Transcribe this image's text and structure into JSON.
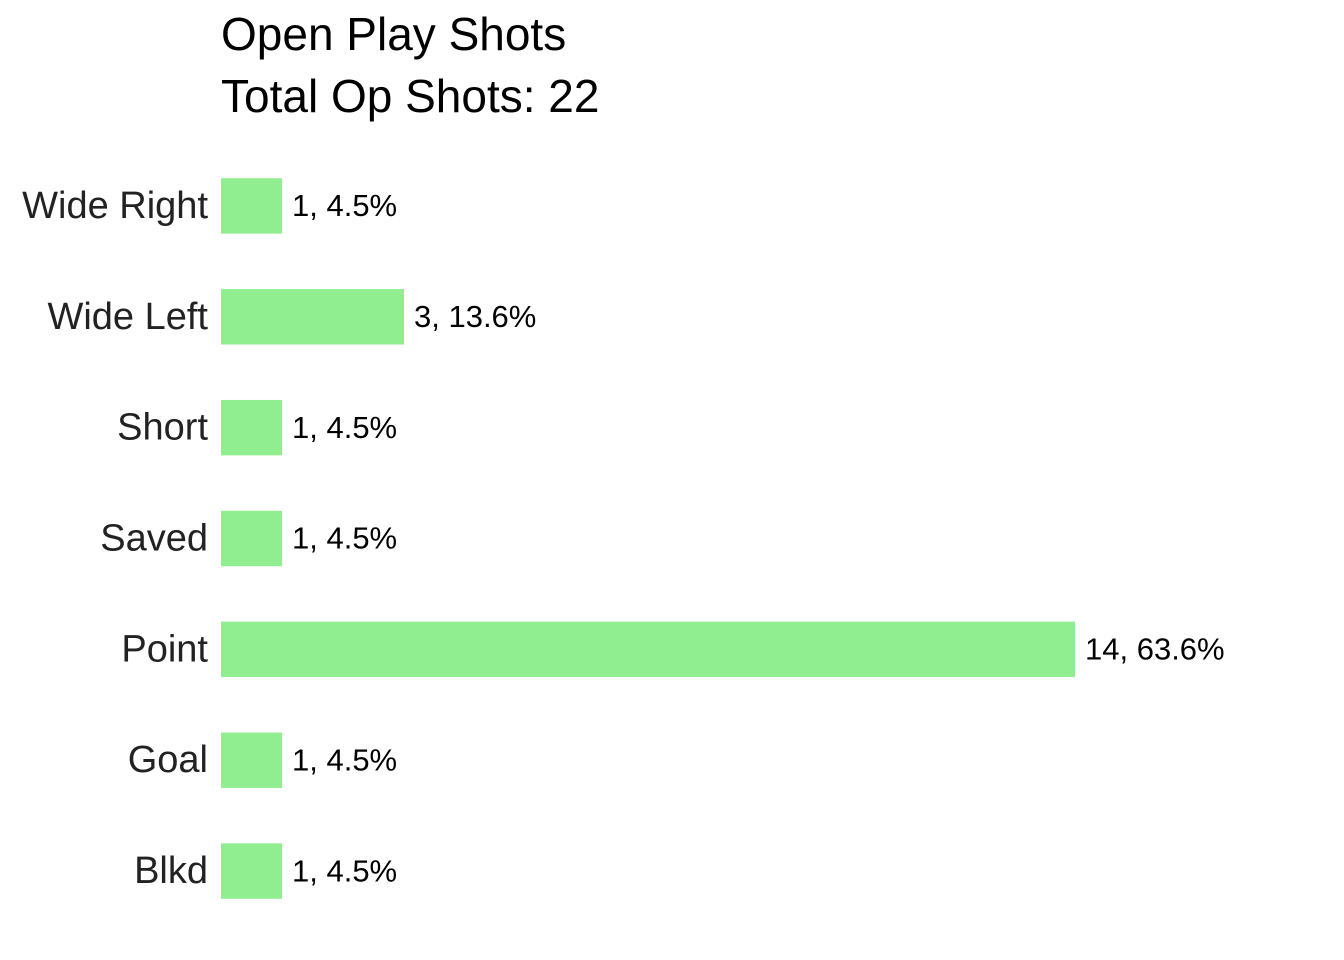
{
  "chart_data": {
    "type": "bar",
    "orientation": "horizontal",
    "title": "Open Play Shots",
    "subtitle": "Total Op Shots: 22",
    "categories": [
      "Wide Right",
      "Wide Left",
      "Short",
      "Saved",
      "Point",
      "Goal",
      "Blkd"
    ],
    "values": [
      1,
      3,
      1,
      1,
      14,
      1,
      1
    ],
    "value_labels": [
      "1, 4.5%",
      "3, 13.6%",
      "1, 4.5%",
      "1, 4.5%",
      "14, 63.6%",
      "1, 4.5%",
      "1, 4.5%"
    ],
    "color": "#90EE90",
    "xlim": [
      0,
      18
    ]
  }
}
